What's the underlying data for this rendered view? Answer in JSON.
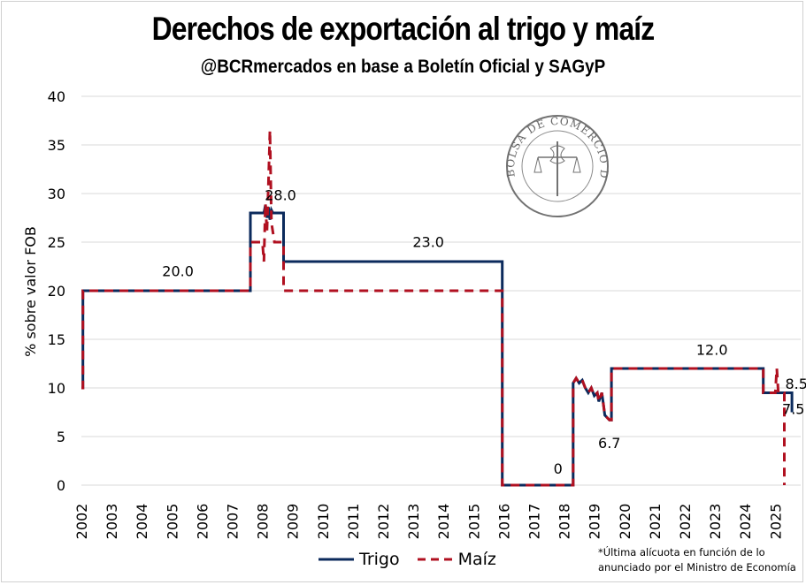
{
  "header": {
    "title": "Derechos de exportación al trigo y maíz",
    "subtitle": "@BCRmercados en base a Boletín Oficial y SAGyP"
  },
  "logo": {
    "text": "BOLSA DE COMERCIO DE ROSARIO"
  },
  "footnote": {
    "line1": "*Última alícuota en función de lo",
    "line2": "anunciado por el Ministro de Economía"
  },
  "chart_data": {
    "type": "line",
    "title": "Derechos de exportación al trigo y maíz",
    "xlabel": "",
    "ylabel": "% sobre valor FOB",
    "ylim": [
      0,
      40
    ],
    "yticks": [
      "0",
      "5",
      "10",
      "15",
      "20",
      "25",
      "30",
      "35",
      "40"
    ],
    "xlim": [
      2002,
      2025.9
    ],
    "xticks": [
      "2002",
      "2003",
      "2004",
      "2005",
      "2006",
      "2007",
      "2008",
      "2009",
      "2010",
      "2011",
      "2012",
      "2013",
      "2014",
      "2015",
      "2016",
      "2017",
      "2018",
      "2019",
      "2020",
      "2021",
      "2022",
      "2023",
      "2024",
      "2025"
    ],
    "grid": "horizontal",
    "legend_position": "bottom",
    "series": [
      {
        "name": "Trigo",
        "color": "#0b2a5c",
        "style": "solid",
        "points": [
          [
            2002.0,
            10
          ],
          [
            2002.05,
            10
          ],
          [
            2002.05,
            20
          ],
          [
            2007.6,
            20
          ],
          [
            2007.6,
            28
          ],
          [
            2008.05,
            28
          ],
          [
            2008.1,
            28.8
          ],
          [
            2008.15,
            27.5
          ],
          [
            2008.2,
            28.6
          ],
          [
            2008.25,
            27.3
          ],
          [
            2008.3,
            28.3
          ],
          [
            2008.35,
            28
          ],
          [
            2008.7,
            28
          ],
          [
            2008.7,
            23
          ],
          [
            2015.95,
            23
          ],
          [
            2015.95,
            0
          ],
          [
            2018.3,
            0
          ],
          [
            2018.3,
            10.5
          ],
          [
            2018.4,
            11
          ],
          [
            2018.5,
            10.5
          ],
          [
            2018.6,
            10.8
          ],
          [
            2018.7,
            10
          ],
          [
            2018.8,
            9.5
          ],
          [
            2018.9,
            10
          ],
          [
            2019.0,
            9.2
          ],
          [
            2019.1,
            9.5
          ],
          [
            2019.15,
            8.6
          ],
          [
            2019.25,
            9.5
          ],
          [
            2019.3,
            8.4
          ],
          [
            2019.35,
            7.2
          ],
          [
            2019.5,
            6.7
          ],
          [
            2019.57,
            6.7
          ],
          [
            2019.57,
            12
          ],
          [
            2024.6,
            12
          ],
          [
            2024.6,
            9.5
          ],
          [
            2025.55,
            9.5
          ],
          [
            2025.55,
            7.5
          ]
        ]
      },
      {
        "name": "Maíz",
        "color": "#b01020",
        "style": "dashed",
        "points": [
          [
            2002.0,
            10
          ],
          [
            2002.05,
            10
          ],
          [
            2002.05,
            20
          ],
          [
            2007.6,
            20
          ],
          [
            2007.6,
            25
          ],
          [
            2008.0,
            25
          ],
          [
            2008.05,
            23
          ],
          [
            2008.1,
            29
          ],
          [
            2008.15,
            26
          ],
          [
            2008.2,
            31
          ],
          [
            2008.25,
            36.5
          ],
          [
            2008.3,
            27
          ],
          [
            2008.35,
            26
          ],
          [
            2008.4,
            25
          ],
          [
            2008.7,
            25
          ],
          [
            2008.7,
            20
          ],
          [
            2015.95,
            20
          ],
          [
            2015.95,
            0
          ],
          [
            2018.3,
            0
          ],
          [
            2018.3,
            10.5
          ],
          [
            2018.4,
            11
          ],
          [
            2018.5,
            10.5
          ],
          [
            2018.6,
            10.8
          ],
          [
            2018.7,
            10
          ],
          [
            2018.8,
            9.5
          ],
          [
            2018.9,
            10
          ],
          [
            2019.0,
            9.2
          ],
          [
            2019.1,
            9.5
          ],
          [
            2019.15,
            8.6
          ],
          [
            2019.25,
            9.5
          ],
          [
            2019.3,
            8.4
          ],
          [
            2019.35,
            7.2
          ],
          [
            2019.5,
            6.7
          ],
          [
            2019.57,
            6.7
          ],
          [
            2019.57,
            12
          ],
          [
            2024.6,
            12
          ],
          [
            2024.6,
            9.5
          ],
          [
            2025.0,
            9.5
          ],
          [
            2025.05,
            12
          ],
          [
            2025.1,
            9.5
          ],
          [
            2025.3,
            9.5
          ],
          [
            2025.3,
            0
          ]
        ]
      }
    ],
    "annotations": [
      {
        "text": "20.0",
        "x": 2005.2,
        "y": 21.5
      },
      {
        "text": "28.0",
        "x": 2008.6,
        "y": 29.3
      },
      {
        "text": "23.0",
        "x": 2013.5,
        "y": 24.5
      },
      {
        "text": "0",
        "x": 2017.8,
        "y": 1.2
      },
      {
        "text": "6.7",
        "x": 2019.5,
        "y": 3.8
      },
      {
        "text": "12.0",
        "x": 2022.9,
        "y": 13.4
      },
      {
        "text": "8.5",
        "x": 2025.7,
        "y": 9.9
      },
      {
        "text": "7.5",
        "x": 2025.6,
        "y": 7.3
      }
    ]
  }
}
